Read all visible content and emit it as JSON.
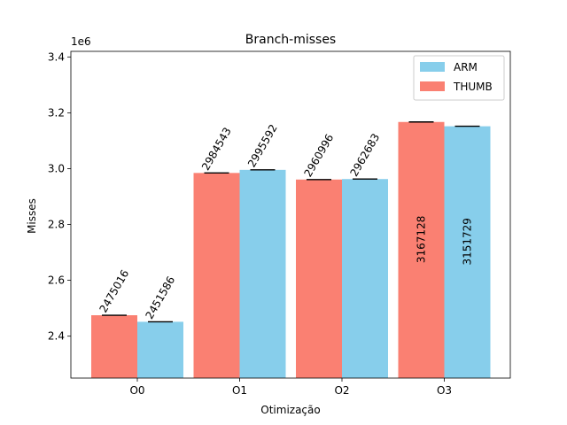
{
  "chart_data": {
    "type": "bar",
    "title": "Branch-misses",
    "xlabel": "Otimização",
    "ylabel": "Misses",
    "offset_text": "1e6",
    "categories": [
      "O0",
      "O1",
      "O2",
      "O3"
    ],
    "series": [
      {
        "name": "THUMB",
        "color": "#fa8072",
        "values": [
          2475016,
          2984543,
          2960996,
          3167128
        ]
      },
      {
        "name": "ARM",
        "color": "#87ceeb",
        "values": [
          2451586,
          2995592,
          2962683,
          3151729
        ]
      }
    ],
    "ylim": [
      2250000,
      3420000
    ],
    "yticks": [
      2400000,
      2600000,
      2800000,
      3000000,
      3200000,
      3400000
    ],
    "ytick_labels": [
      "2.4",
      "2.6",
      "2.8",
      "3.0",
      "3.2",
      "3.4"
    ],
    "legend": {
      "placement": "top-right",
      "entries": [
        "ARM",
        "THUMB"
      ]
    },
    "grid": false
  }
}
